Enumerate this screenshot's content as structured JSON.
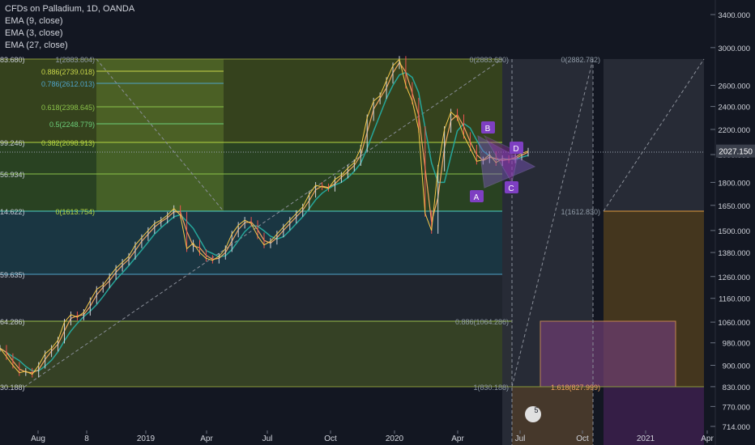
{
  "legend": {
    "title": "CFDs on Palladium, 1D, OANDA",
    "ema1": "EMA (9, close)",
    "ema2": "EMA (3, close)",
    "ema3": "EMA (27, close)"
  },
  "chart_data": {
    "type": "line",
    "title": "CFDs on Palladium, 1D, OANDA",
    "xlabel": "",
    "ylabel": "",
    "ylim": [
      714,
      3500
    ],
    "log_scale": true,
    "grid": false,
    "legend_position": "top-left",
    "x_ticks": [
      "Aug",
      "8",
      "2019",
      "Apr",
      "Jul",
      "Oct",
      "2020",
      "Apr",
      "Jul",
      "Oct",
      "2021",
      "Apr"
    ],
    "y_ticks": [
      "3400.000",
      "3000.000",
      "2600.000",
      "2400.000",
      "2200.000",
      "2000.000",
      "1800.000",
      "1650.000",
      "1500.000",
      "1380.000",
      "1260.000",
      "1160.000",
      "1060.000",
      "980.000",
      "900.000",
      "830.000",
      "770.000",
      "714.000"
    ],
    "last_price_label": "2027.150",
    "series": [
      {
        "values": [
          960,
          930,
          900,
          875,
          880,
          870,
          900,
          940,
          960,
          990,
          1060,
          1090,
          1080,
          1100,
          1150,
          1200,
          1220,
          1260,
          1300,
          1330,
          1360,
          1420,
          1460,
          1500,
          1540,
          1560,
          1590,
          1630,
          1590,
          1400,
          1430,
          1380,
          1350,
          1340,
          1360,
          1400,
          1480,
          1530,
          1560,
          1540,
          1470,
          1420,
          1440,
          1480,
          1520,
          1560,
          1600,
          1640,
          1720,
          1780,
          1770,
          1760,
          1820,
          1850,
          1900,
          1940,
          2050,
          2300,
          2450,
          2500,
          2650,
          2800,
          2870,
          2600,
          2450,
          2200,
          1600,
          1500,
          1900,
          2200,
          2350,
          2300,
          2150,
          2050,
          1950,
          1960,
          2000,
          1940,
          1970,
          1960,
          1980,
          2010,
          2027
        ]
      }
    ],
    "annotations": {
      "fib_left": [
        "1(2883.804)",
        "0.886(2739.018)",
        "0.786(2612.013)",
        "0.618(2398.645)",
        "0.5(2248.779)",
        "0.382(2098.913)",
        "0(1613.754)"
      ],
      "fib_left_cut": [
        "83.680)",
        "99.246)",
        "56.934)",
        "14.622)",
        "59.635)",
        "64.286)",
        "30.188)"
      ],
      "fib_mid": [
        "0(2883.680)",
        "0.886(1064.286)",
        "1(830.188)"
      ],
      "fib_right": [
        "0(2882.782)",
        "1(1612.830)",
        "1.618(827.999)"
      ],
      "pattern_points": [
        "A",
        "B",
        "C",
        "D"
      ],
      "badge": "5"
    }
  }
}
